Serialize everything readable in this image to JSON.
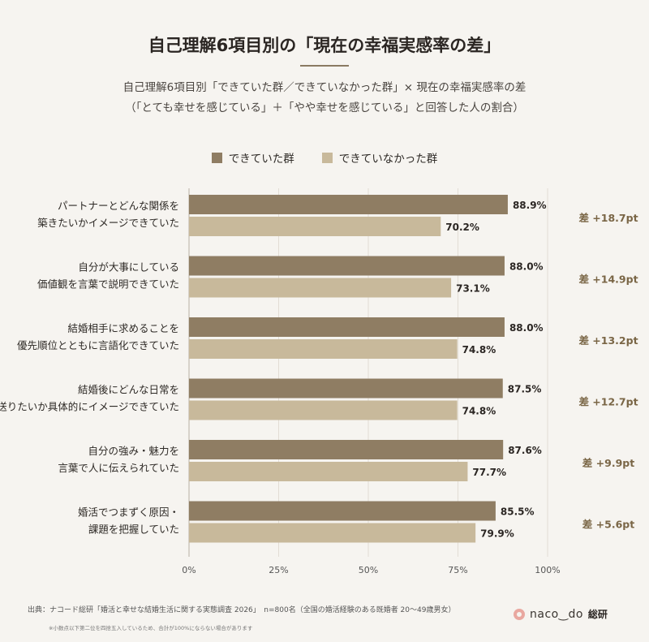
{
  "title": "自己理解6項目別の「現在の幸福実感率の差」",
  "subtitle_line1": "自己理解6項目別「できていた群／できていなかった群」× 現在の幸福実感率の差",
  "subtitle_line2": "（「とても幸せを感じている」＋「やや幸せを感じている」と回答した人の割合）",
  "legend": [
    {
      "label": "できていた群",
      "color": "#8f7d63"
    },
    {
      "label": "できていなかった群",
      "color": "#c8b99b"
    }
  ],
  "chart_data": {
    "type": "bar",
    "orientation": "horizontal",
    "categories": [
      [
        "パートナーとどんな関係を",
        "築きたいかイメージできていた"
      ],
      [
        "自分が大事にしている",
        "価値観を言葉で説明できていた"
      ],
      [
        "結婚相手に求めることを",
        "優先順位とともに言語化できていた"
      ],
      [
        "結婚後にどんな日常を",
        "送りたいか具体的にイメージできていた"
      ],
      [
        "自分の強み・魅力を",
        "言葉で人に伝えられていた"
      ],
      [
        "婚活でつまずく原因・",
        "課題を把握していた"
      ]
    ],
    "series": [
      {
        "name": "できていた群",
        "color": "#8f7d63",
        "values": [
          88.9,
          88.0,
          88.0,
          87.5,
          87.6,
          85.5
        ],
        "labels": [
          "88.9%",
          "88.0%",
          "88.0%",
          "87.5%",
          "87.6%",
          "85.5%"
        ]
      },
      {
        "name": "できていなかった群",
        "color": "#c8b99b",
        "values": [
          70.2,
          73.1,
          74.8,
          74.8,
          77.7,
          79.9
        ],
        "labels": [
          "70.2%",
          "73.1%",
          "74.8%",
          "74.8%",
          "77.7%",
          "79.9%"
        ]
      }
    ],
    "differences": [
      "差 +18.7pt",
      "差 +14.9pt",
      "差 +13.2pt",
      "差 +12.7pt",
      "差 +9.9pt",
      "差 +5.6pt"
    ],
    "difference_color": "#7a6646",
    "xlim": [
      0,
      100
    ],
    "xticks": [
      0,
      25,
      50,
      75,
      100
    ],
    "xtick_labels": [
      "0%",
      "25%",
      "50%",
      "75%",
      "100%"
    ],
    "grid": true,
    "legend_position": "top-center"
  },
  "footer": {
    "source": "出典：ナコード総研「婚活と幸せな結婚生活に関する実態調査 2026」　n=800名（全国の婚活経験のある既婚者 20〜49歳男女）",
    "note": "※小数点以下第二位を四捨五入しているため、合計が100%にならない場合があります"
  },
  "logo": {
    "text": "naco‿do",
    "suffix": "総研",
    "icon": "pink-ring-icon"
  }
}
